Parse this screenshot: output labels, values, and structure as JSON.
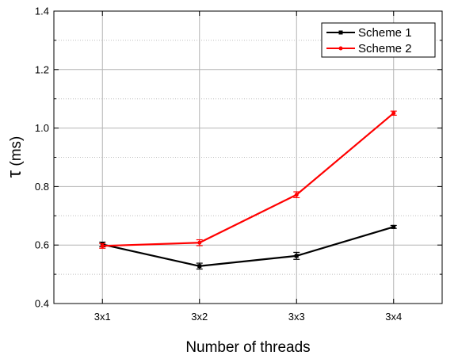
{
  "chart_data": {
    "type": "line",
    "categories": [
      "3x1",
      "3x2",
      "3x3",
      "3x4"
    ],
    "xlabel": "Number of threads",
    "ylabel_symbol": "τ",
    "ylabel_unit": "(ms)",
    "ylim": [
      0.4,
      1.4
    ],
    "yticks": [
      "0.4",
      "0.6",
      "0.8",
      "1.0",
      "1.2",
      "1.4"
    ],
    "grid": true,
    "legend_position": "top-right",
    "series": [
      {
        "name": "Scheme 1",
        "color": "#000000",
        "marker": "square",
        "values": [
          0.602,
          0.528,
          0.563,
          0.662
        ],
        "errors": [
          0.008,
          0.01,
          0.012,
          0.005
        ]
      },
      {
        "name": "Scheme 2",
        "color": "#ff0000",
        "marker": "circle",
        "values": [
          0.597,
          0.608,
          0.772,
          1.051
        ],
        "errors": [
          0.008,
          0.01,
          0.01,
          0.007
        ]
      }
    ]
  }
}
